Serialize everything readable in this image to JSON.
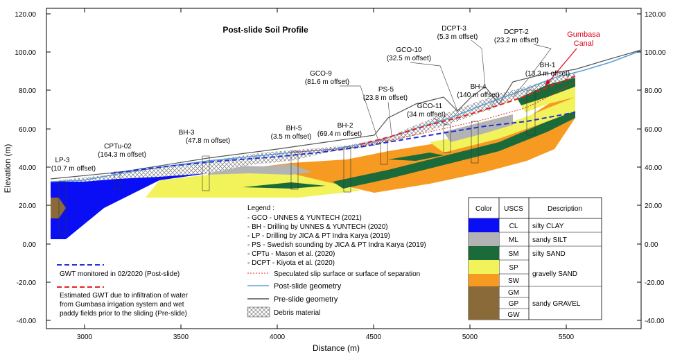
{
  "title": "Post-slide Soil Profile",
  "axes": {
    "ylabel": "Elevation (m)",
    "xlabel": "Distance (m)",
    "x_ticks": [
      "3000",
      "3500",
      "4000",
      "4500",
      "5000",
      "5500"
    ],
    "y_ticks": [
      "120.00",
      "100.00",
      "80.00",
      "60.00",
      "40.00",
      "20.00",
      "0.00",
      "-20.00",
      "-40.00"
    ],
    "xlim": [
      2800,
      5900
    ],
    "ylim": [
      -42,
      122
    ]
  },
  "boreholes": [
    {
      "id": "lp3",
      "label": "LP-3",
      "offset": "(10.7 m offset)"
    },
    {
      "id": "cptu02",
      "label": "CPTu-02",
      "offset": "(164.3 m offset)"
    },
    {
      "id": "bh3",
      "label": "BH-3",
      "offset": "(47.8 m offset)"
    },
    {
      "id": "bh5",
      "label": "BH-5",
      "offset": "(3.5 m offset)"
    },
    {
      "id": "bh2",
      "label": "BH-2",
      "offset": "(69.4 m offset)"
    },
    {
      "id": "gco9",
      "label": "GCO-9",
      "offset": "(81.6 m offset)"
    },
    {
      "id": "ps5",
      "label": "PS-5",
      "offset": "(23.8 m offset)"
    },
    {
      "id": "gco10",
      "label": "GCO-10",
      "offset": "(32.5 m offset)"
    },
    {
      "id": "gco11",
      "label": "GCO-11",
      "offset": "(34 m offset)"
    },
    {
      "id": "dcpt3",
      "label": "DCPT-3",
      "offset": "(5.3 m offset)"
    },
    {
      "id": "bh4",
      "label": "BH-4",
      "offset": "(140 m offset)"
    },
    {
      "id": "dcpt2",
      "label": "DCPT-2",
      "offset": "(23.2 m offset)"
    },
    {
      "id": "bh1",
      "label": "BH-1",
      "offset": "(13.3 m offset)"
    }
  ],
  "canal": {
    "line1": "Gumbasa",
    "line2": "Canal",
    "color": "#e0001b"
  },
  "legend": {
    "heading": "Legend :",
    "items": [
      "- GCO - UNNES & YUNTECH (2021)",
      "- BH - Drilling by UNNES & YUNTECH (2020)",
      "- LP - Drilling by JICA & PT Indra Karya (2019)",
      "- PS - Swedish sounding by JICA & PT Indra Karya (2019)",
      "- CPTu - Mason et al. (2020)",
      "- DCPT - Kiyota et al. (2020)"
    ],
    "slip": "Speculated slip surface or surface of separation",
    "post": "Post-slide geometry",
    "pre": "Pre-slide geometry",
    "debris": "Debris material"
  },
  "gwt": {
    "post": "GWT monitored in 02/2020 (Post-slide)",
    "pre_line1": "Estimated GWT due to infiltration of water",
    "pre_line2": "from Gumbasa irrigation system and wet",
    "pre_line3": "paddy fields prior to the sliding (Pre-slide)"
  },
  "soil_table": {
    "headers": [
      "Color",
      "USCS",
      "Description"
    ],
    "rows": [
      {
        "uscs": "CL",
        "color": "#0a0ef5",
        "desc": "silty CLAY"
      },
      {
        "uscs": "ML",
        "color": "#b3b3b3",
        "desc": "sandy SILT"
      },
      {
        "uscs": "SM",
        "color": "#1b6b3a",
        "desc": "silty SAND"
      },
      {
        "uscs": "SP",
        "color": "#f2f25a",
        "desc": "gravelly SAND"
      },
      {
        "uscs": "SW",
        "color": "#f79a22",
        "desc": ""
      },
      {
        "uscs": "GM",
        "color": "#8b6a3a",
        "desc": "sandy GRAVEL"
      },
      {
        "uscs": "GP",
        "color": "#8b6a3a",
        "desc": ""
      },
      {
        "uscs": "GW",
        "color": "#8b6a3a",
        "desc": ""
      }
    ]
  },
  "colors": {
    "post_line": "#5aa0d8",
    "pre_line": "#555555",
    "gwt_post": "#1f2fd6",
    "gwt_pre": "#e82020",
    "slip": "#e82020"
  }
}
